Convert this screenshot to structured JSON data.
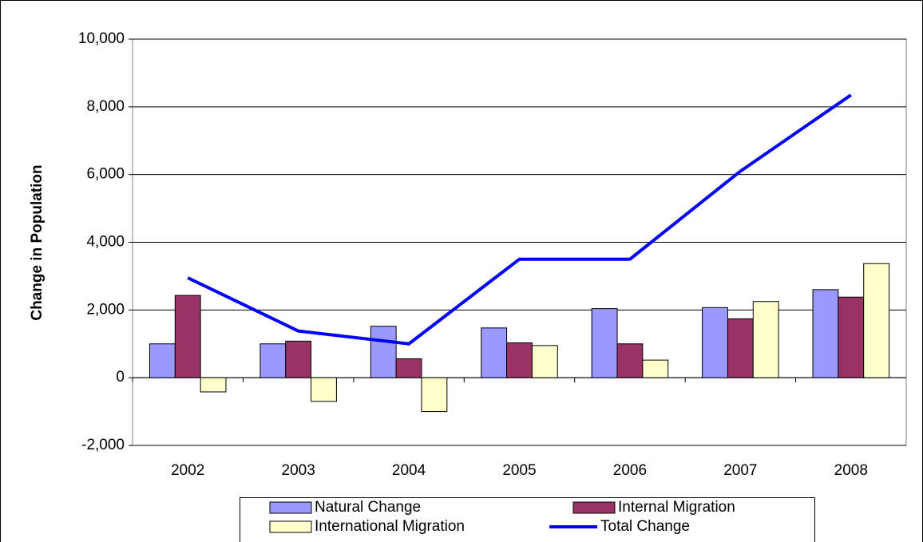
{
  "chart_data": {
    "type": "bar",
    "ylabel": "Change in Population",
    "categories": [
      "2002",
      "2003",
      "2004",
      "2005",
      "2006",
      "2007",
      "2008"
    ],
    "series": [
      {
        "name": "Natural Change",
        "color": "#9999ff",
        "values": [
          1000,
          1000,
          1520,
          1470,
          2040,
          2070,
          2600
        ]
      },
      {
        "name": "Internal Migration",
        "color": "#993366",
        "values": [
          2430,
          1080,
          560,
          1030,
          1000,
          1740,
          2380
        ]
      },
      {
        "name": "International Migration",
        "color": "#ffffcc",
        "values": [
          -420,
          -700,
          -1000,
          950,
          520,
          2250,
          3370
        ]
      },
      {
        "name": "Total Change",
        "color": "#0000ff",
        "type": "line",
        "values": [
          2950,
          1380,
          1000,
          3500,
          3500,
          6100,
          8350
        ]
      }
    ],
    "ylim": [
      -2000,
      10000
    ],
    "yticks": [
      {
        "value": -2000,
        "label": "-2,000"
      },
      0,
      {
        "value": 2000,
        "label": "2,000"
      },
      {
        "value": 4000,
        "label": "4,000"
      },
      {
        "value": 6000,
        "label": "6,000"
      },
      {
        "value": 8000,
        "label": "8,000"
      },
      {
        "value": 10000,
        "label": "10,000"
      }
    ],
    "grid": true
  }
}
